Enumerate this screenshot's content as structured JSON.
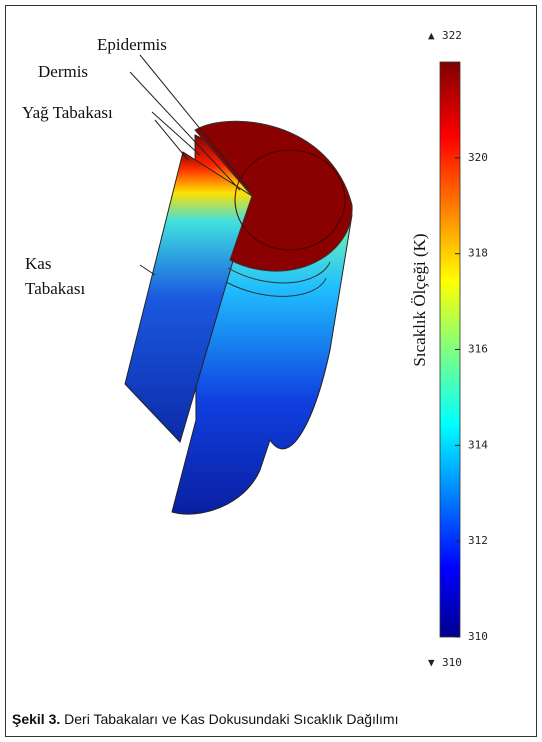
{
  "labels": {
    "epidermis": "Epidermis",
    "dermis": "Dermis",
    "fat": "Yağ Tabakası",
    "muscle": [
      "Kas",
      "Tabakası"
    ]
  },
  "colorbar": {
    "title": "Sıcaklık Ölçeği (K)",
    "range": [
      310,
      322
    ],
    "max": 322,
    "min": 310,
    "ticks": [
      310,
      312,
      314,
      316,
      318,
      320
    ]
  },
  "caption": {
    "label": "Şekil 3.",
    "text": "Deri Tabakaları ve Kas Dokusundaki Sıcaklık Dağılımı"
  }
}
